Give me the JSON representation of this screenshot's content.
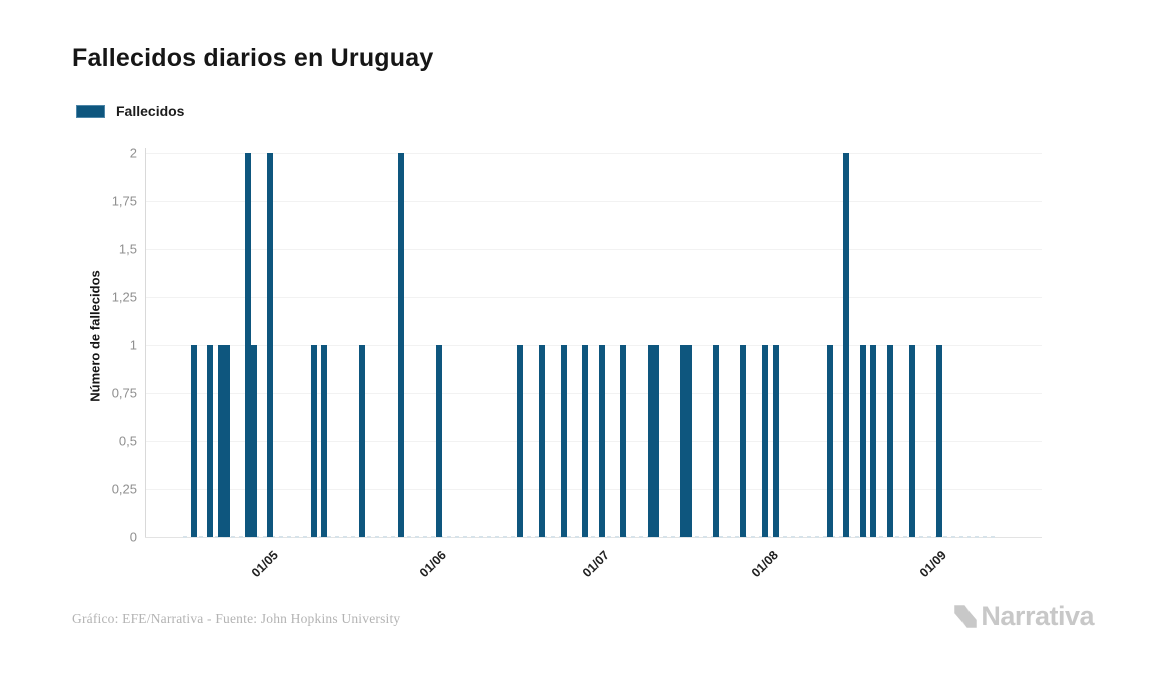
{
  "header": {
    "title": "Fallecidos diarios en Uruguay"
  },
  "legend": {
    "items": [
      {
        "label": "Fallecidos",
        "color": "#0e567e"
      }
    ]
  },
  "footer": {
    "credit": "Gráfico: EFE/Narrativa - Fuente: John Hopkins University",
    "brand": "Narrativa"
  },
  "colors": {
    "bar": "#0e567e",
    "gridline": "#f2f2f2",
    "axis_line": "#d9d9d9",
    "y_tick_text": "#8f8f8f",
    "x_tick_text": "#1f1f1f",
    "credit_text": "#b3b3b3",
    "brand_gray": "#c8c8c8"
  },
  "chart_data": {
    "type": "bar",
    "title": "Fallecidos diarios en Uruguay",
    "xlabel": "",
    "ylabel": "Número de fallecidos",
    "legend_position": "top-left",
    "grid": true,
    "ylim": [
      0,
      2
    ],
    "yticks": [
      {
        "value": 0,
        "label": "0"
      },
      {
        "value": 0.25,
        "label": "0,25"
      },
      {
        "value": 0.5,
        "label": "0,5"
      },
      {
        "value": 0.75,
        "label": "0,75"
      },
      {
        "value": 1,
        "label": "1"
      },
      {
        "value": 1.25,
        "label": "1,25"
      },
      {
        "value": 1.5,
        "label": "1,5"
      },
      {
        "value": 1.75,
        "label": "1,75"
      },
      {
        "value": 2,
        "label": "2"
      }
    ],
    "x_domain": {
      "start": "2020-04-09",
      "end": "2020-09-21"
    },
    "xticks": [
      {
        "date": "2020-05-01",
        "label": "01/05"
      },
      {
        "date": "2020-06-01",
        "label": "01/06"
      },
      {
        "date": "2020-07-01",
        "label": "01/07"
      },
      {
        "date": "2020-08-01",
        "label": "01/08"
      },
      {
        "date": "2020-09-01",
        "label": "01/09"
      }
    ],
    "series": [
      {
        "name": "Fallecidos",
        "color": "#0e567e",
        "points": [
          {
            "date": "2020-04-18",
            "value": 1
          },
          {
            "date": "2020-04-21",
            "value": 1
          },
          {
            "date": "2020-04-23",
            "value": 1
          },
          {
            "date": "2020-04-24",
            "value": 1
          },
          {
            "date": "2020-04-28",
            "value": 2
          },
          {
            "date": "2020-04-29",
            "value": 1
          },
          {
            "date": "2020-05-02",
            "value": 2
          },
          {
            "date": "2020-05-10",
            "value": 1
          },
          {
            "date": "2020-05-12",
            "value": 1
          },
          {
            "date": "2020-05-19",
            "value": 1
          },
          {
            "date": "2020-05-26",
            "value": 2
          },
          {
            "date": "2020-06-02",
            "value": 1
          },
          {
            "date": "2020-06-17",
            "value": 1
          },
          {
            "date": "2020-06-21",
            "value": 1
          },
          {
            "date": "2020-06-25",
            "value": 1
          },
          {
            "date": "2020-06-29",
            "value": 1
          },
          {
            "date": "2020-07-02",
            "value": 1
          },
          {
            "date": "2020-07-06",
            "value": 1
          },
          {
            "date": "2020-07-11",
            "value": 1
          },
          {
            "date": "2020-07-12",
            "value": 1
          },
          {
            "date": "2020-07-17",
            "value": 1
          },
          {
            "date": "2020-07-18",
            "value": 1
          },
          {
            "date": "2020-07-23",
            "value": 1
          },
          {
            "date": "2020-07-28",
            "value": 1
          },
          {
            "date": "2020-08-01",
            "value": 1
          },
          {
            "date": "2020-08-03",
            "value": 1
          },
          {
            "date": "2020-08-13",
            "value": 1
          },
          {
            "date": "2020-08-16",
            "value": 2
          },
          {
            "date": "2020-08-19",
            "value": 1
          },
          {
            "date": "2020-08-21",
            "value": 1
          },
          {
            "date": "2020-08-24",
            "value": 1
          },
          {
            "date": "2020-08-28",
            "value": 1
          },
          {
            "date": "2020-09-02",
            "value": 1
          }
        ]
      }
    ],
    "zero_value_dash": {
      "start": "2020-04-16",
      "end": "2020-09-13"
    }
  }
}
